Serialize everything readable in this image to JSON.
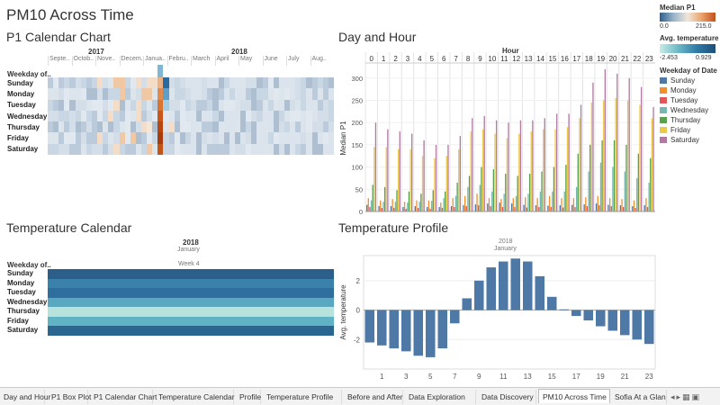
{
  "page_title": "PM10 Across Time",
  "legends": {
    "median": {
      "title": "Median P1",
      "min": "0.0",
      "max": "215.0"
    },
    "temperature": {
      "title": "Avg. temperature",
      "min": "-2.453",
      "max": "0.929"
    },
    "weekday": {
      "title": "Weekday of Date",
      "items": [
        {
          "label": "Sunday",
          "color": "#4e79a7"
        },
        {
          "label": "Monday",
          "color": "#f28e2b"
        },
        {
          "label": "Tuesday",
          "color": "#e15759"
        },
        {
          "label": "Wednesday",
          "color": "#76b7b2"
        },
        {
          "label": "Thursday",
          "color": "#59a14f"
        },
        {
          "label": "Friday",
          "color": "#edc948"
        },
        {
          "label": "Saturday",
          "color": "#b07aa1"
        }
      ]
    }
  },
  "p1_calendar": {
    "title": "P1 Calendar Chart",
    "year_labels": [
      "2017",
      "2018"
    ],
    "month_labels": [
      "Septe..",
      "Octob..",
      "Nove..",
      "Decem..",
      "Janua..",
      "Febru..",
      "March",
      "April",
      "May",
      "June",
      "July",
      "Aug.."
    ],
    "weekday_header": "Weekday of..",
    "weekdays": [
      "Sunday",
      "Monday",
      "Tuesday",
      "Wednesday",
      "Thursday",
      "Friday",
      "Saturday"
    ]
  },
  "temperature_calendar": {
    "title": "Temperature Calendar",
    "year": "2018",
    "month": "January",
    "week": "Week 4",
    "weekday_header": "Weekday of..",
    "weekdays": [
      "Sunday",
      "Monday",
      "Tuesday",
      "Wednesday",
      "Thursday",
      "Friday",
      "Saturday"
    ],
    "colors": [
      "#2b5f8a",
      "#3a82ab",
      "#2f6f9e",
      "#5aa8bf",
      "#b8e3dc",
      "#5fb3c5",
      "#2b6691"
    ]
  },
  "chart_data": [
    {
      "type": "bar",
      "title": "Day and Hour",
      "xlabel": "Hour",
      "ylabel": "Median P1",
      "ylim": [
        0,
        330
      ],
      "yticks": [
        0,
        50,
        100,
        150,
        200,
        250,
        300
      ],
      "categories": [
        "0",
        "1",
        "2",
        "3",
        "4",
        "5",
        "6",
        "7",
        "8",
        "9",
        "10",
        "11",
        "12",
        "13",
        "14",
        "15",
        "16",
        "17",
        "18",
        "19",
        "20",
        "21",
        "22",
        "23"
      ],
      "series": [
        {
          "name": "Sunday",
          "values": [
            15,
            12,
            12,
            10,
            12,
            10,
            10,
            12,
            14,
            16,
            18,
            20,
            18,
            15,
            14,
            13,
            14,
            15,
            16,
            18,
            15,
            14,
            12,
            14
          ]
        },
        {
          "name": "Monday",
          "values": [
            30,
            25,
            28,
            22,
            25,
            25,
            20,
            30,
            35,
            40,
            30,
            28,
            30,
            32,
            30,
            35,
            30,
            30,
            32,
            35,
            30,
            28,
            25,
            30
          ]
        },
        {
          "name": "Tuesday",
          "values": [
            10,
            8,
            8,
            6,
            8,
            6,
            8,
            10,
            12,
            14,
            12,
            10,
            10,
            9,
            10,
            10,
            9,
            10,
            12,
            14,
            12,
            10,
            8,
            10
          ]
        },
        {
          "name": "Wednesday",
          "values": [
            25,
            22,
            22,
            20,
            22,
            24,
            30,
            35,
            55,
            60,
            45,
            40,
            35,
            40,
            45,
            45,
            45,
            55,
            90,
            110,
            100,
            90,
            75,
            65
          ]
        },
        {
          "name": "Thursday",
          "values": [
            60,
            55,
            48,
            45,
            40,
            48,
            45,
            65,
            80,
            100,
            95,
            85,
            80,
            85,
            90,
            100,
            105,
            130,
            150,
            160,
            160,
            150,
            130,
            120
          ]
        },
        {
          "name": "Friday",
          "values": [
            145,
            145,
            140,
            140,
            125,
            120,
            125,
            140,
            180,
            185,
            175,
            165,
            175,
            180,
            185,
            185,
            190,
            210,
            245,
            250,
            255,
            250,
            240,
            210
          ]
        },
        {
          "name": "Saturday",
          "values": [
            200,
            185,
            180,
            175,
            160,
            150,
            150,
            170,
            210,
            215,
            205,
            200,
            205,
            205,
            210,
            220,
            220,
            240,
            290,
            320,
            310,
            300,
            280,
            235
          ]
        }
      ]
    },
    {
      "type": "bar",
      "title": "Temperature Profile",
      "subtitle_year": "2018",
      "subtitle_month": "January",
      "xlabel": "",
      "ylabel": "Avg. temperature",
      "ylim": [
        -4.0,
        3.7
      ],
      "yticks": [
        -2,
        0,
        2
      ],
      "categories": [
        "0",
        "1",
        "2",
        "3",
        "4",
        "5",
        "6",
        "7",
        "8",
        "9",
        "10",
        "11",
        "12",
        "13",
        "14",
        "15",
        "16",
        "17",
        "18",
        "19",
        "20",
        "21",
        "22",
        "23"
      ],
      "xtick_labels": [
        "1",
        "3",
        "5",
        "7",
        "9",
        "11",
        "13",
        "15",
        "17",
        "19",
        "21",
        "23"
      ],
      "values": [
        -2.2,
        -2.4,
        -2.6,
        -2.8,
        -3.1,
        -3.2,
        -2.6,
        -0.9,
        0.8,
        2.0,
        2.9,
        3.3,
        3.5,
        3.3,
        2.3,
        0.9,
        0.05,
        -0.4,
        -0.7,
        -1.1,
        -1.4,
        -1.7,
        -2.0,
        -2.3
      ]
    }
  ],
  "tabs": [
    {
      "label": "Day and Hour",
      "active": false
    },
    {
      "label": "P1 Box Plot",
      "active": false
    },
    {
      "label": "P1 Calendar Chart",
      "active": false
    },
    {
      "label": "Temperature Calendar",
      "active": false
    },
    {
      "label": "Profile",
      "active": false
    },
    {
      "label": "Temperature Profile",
      "active": false
    },
    {
      "label": "Before and After",
      "active": false
    },
    {
      "label": "Data Exploration",
      "active": false
    },
    {
      "label": "Data Discovery",
      "active": false
    },
    {
      "label": "PM10 Across Time",
      "active": true
    },
    {
      "label": "Sofia At a Glan",
      "active": false
    }
  ]
}
